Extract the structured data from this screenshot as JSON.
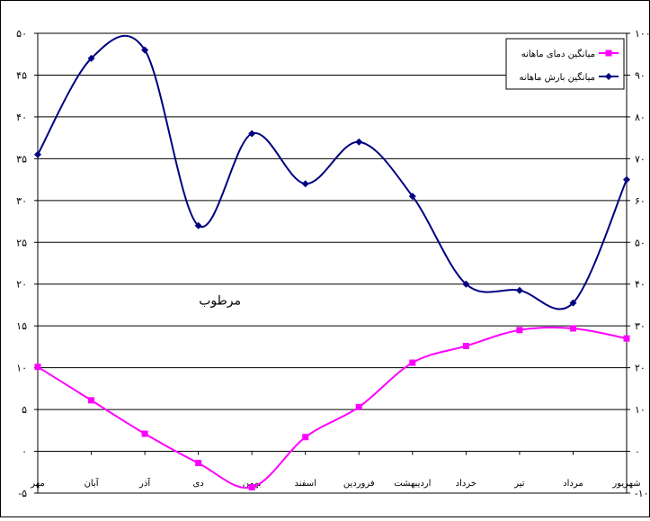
{
  "chart_data": {
    "type": "line",
    "title": "",
    "xlabel": "",
    "categories": [
      "مهر",
      "آبان",
      "آذر",
      "دی",
      "بهمن",
      "اسفند",
      "فروردین",
      "اردیبهشت",
      "خرداد",
      "تیر",
      "مرداد",
      "شهریور"
    ],
    "left_axis": {
      "ylim": [
        -5,
        50
      ],
      "ticks": [
        -5,
        0,
        5,
        10,
        15,
        20,
        25,
        30,
        35,
        40,
        45,
        50
      ],
      "tick_labels": [
        "-۵",
        "۰",
        "۵",
        "۱۰",
        "۱۵",
        "۲۰",
        "۲۵",
        "۳۰",
        "۳۵",
        "۴۰",
        "۴۵",
        "۵۰"
      ]
    },
    "right_axis": {
      "ylim": [
        -10,
        100
      ],
      "ticks": [
        -10,
        0,
        10,
        20,
        30,
        40,
        50,
        60,
        70,
        80,
        90,
        100
      ],
      "tick_labels": [
        "-۱۰",
        "۰",
        "۱۰",
        "۲۰",
        "۳۰",
        "۴۰",
        "۵۰",
        "۶۰",
        "۷۰",
        "۸۰",
        "۹۰",
        "۱۰۰"
      ]
    },
    "grid": true,
    "legend_position": "top-right",
    "series": [
      {
        "name": "میانگین دمای ماهانه",
        "axis": "left",
        "color": "#ff00ff",
        "marker": "square",
        "values": [
          10.1,
          6.1,
          2.1,
          -1.4,
          -4.3,
          1.7,
          5.3,
          10.6,
          12.6,
          14.5,
          14.7,
          13.5
        ]
      },
      {
        "name": "میانگین بارش ماهانه",
        "axis": "right",
        "color": "#000080",
        "marker": "diamond",
        "values": [
          71.0,
          94.0,
          96.0,
          54.0,
          76.0,
          64.0,
          74.0,
          61.0,
          40.0,
          38.5,
          35.5,
          65.0
        ]
      }
    ],
    "annotations": [
      {
        "text": "مرطوب",
        "x_category": "دی",
        "y_value_left": 18
      }
    ]
  }
}
